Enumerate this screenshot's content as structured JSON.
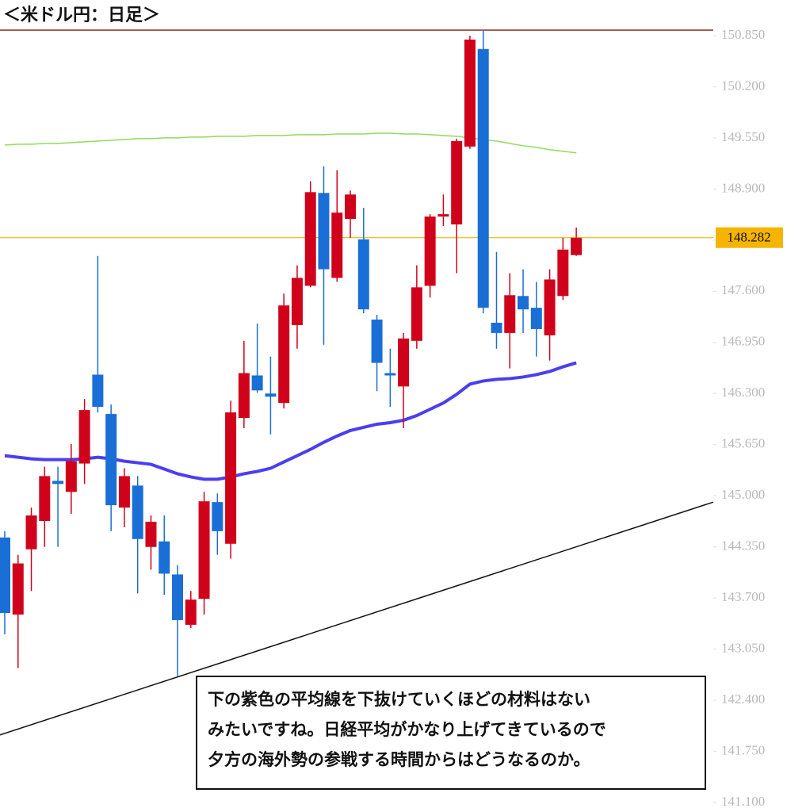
{
  "chart_data": {
    "type": "candlestick",
    "title": "＜米ドル円：日足＞",
    "ylim": [
      140.98,
      150.92
    ],
    "yticks": [
      {
        "value": 150.85,
        "label": "150.850"
      },
      {
        "value": 150.2,
        "label": "150.200"
      },
      {
        "value": 149.55,
        "label": "149.550"
      },
      {
        "value": 148.9,
        "label": "148.900"
      },
      {
        "value": 148.25,
        "label": "148.250"
      },
      {
        "value": 147.6,
        "label": "147.600"
      },
      {
        "value": 146.95,
        "label": "146.950"
      },
      {
        "value": 146.3,
        "label": "146.300"
      },
      {
        "value": 145.65,
        "label": "145.650"
      },
      {
        "value": 145,
        "label": "145.000"
      },
      {
        "value": 144.35,
        "label": "144.350"
      },
      {
        "value": 143.7,
        "label": "143.700"
      },
      {
        "value": 143.05,
        "label": "143.050"
      },
      {
        "value": 142.4,
        "label": "142.400"
      },
      {
        "value": 141.75,
        "label": "141.750"
      },
      {
        "value": 141.1,
        "label": "141.100"
      }
    ],
    "up_color": "#d0021b",
    "down_color": "#1a6fd6",
    "open": [
      144.47,
      143.49,
      144.32,
      144.68,
      145.19,
      145.05,
      145.41,
      146.54,
      146.04,
      144.85,
      145.13,
      144.35,
      144.42,
      144.0,
      143.36,
      143.69,
      144.92,
      144.39,
      145.99,
      146.53,
      146.3,
      146.18,
      147.17,
      147.67,
      148.85,
      147.77,
      148.52,
      148.26,
      147.24,
      146.56,
      146.39,
      146.97,
      147.67,
      148.55,
      148.45,
      149.44,
      150.68,
      147.2,
      147.07,
      147.54,
      147.39,
      147.04,
      147.54,
      148.06
    ],
    "high": [
      144.55,
      144.25,
      144.85,
      145.37,
      145.37,
      145.66,
      146.23,
      148.05,
      146.16,
      145.35,
      145.25,
      144.75,
      144.75,
      144.12,
      143.79,
      145.05,
      145.03,
      146.21,
      146.97,
      147.19,
      146.77,
      147.57,
      147.93,
      149.0,
      149.19,
      149.14,
      148.88,
      148.66,
      147.3,
      146.87,
      147.07,
      147.93,
      148.58,
      148.83,
      149.54,
      150.85,
      150.92,
      148.1,
      147.83,
      147.88,
      147.72,
      147.88,
      148.28,
      148.41
    ],
    "low": [
      143.24,
      142.81,
      143.79,
      144.35,
      144.35,
      144.77,
      145.15,
      146.06,
      144.55,
      144.6,
      143.76,
      144.06,
      143.74,
      142.71,
      143.32,
      143.49,
      144.25,
      144.2,
      145.86,
      146.31,
      145.78,
      146.11,
      146.87,
      147.65,
      146.92,
      147.72,
      148.28,
      147.32,
      146.33,
      146.13,
      145.86,
      146.87,
      147.52,
      148.43,
      147.83,
      149.41,
      147.32,
      146.87,
      146.62,
      147.07,
      146.77,
      146.72,
      147.49,
      148.05
    ],
    "close": [
      143.51,
      144.14,
      144.75,
      145.25,
      145.15,
      145.44,
      146.09,
      146.13,
      144.88,
      145.25,
      144.45,
      144.67,
      144.01,
      143.42,
      143.68,
      144.93,
      144.55,
      146.06,
      146.56,
      146.34,
      146.26,
      147.42,
      147.77,
      148.86,
      147.88,
      148.6,
      148.83,
      147.37,
      146.69,
      146.53,
      147.0,
      147.65,
      148.55,
      148.58,
      149.51,
      150.8,
      147.39,
      147.07,
      147.55,
      147.37,
      147.12,
      147.75,
      148.13,
      148.28
    ],
    "moving_averages": [
      {
        "color": "#8fdc5a",
        "values": [
          149.46,
          149.47,
          149.47,
          149.48,
          149.48,
          149.49,
          149.5,
          149.51,
          149.52,
          149.53,
          149.54,
          149.54,
          149.55,
          149.55,
          149.56,
          149.56,
          149.57,
          149.57,
          149.57,
          149.58,
          149.58,
          149.58,
          149.59,
          149.59,
          149.59,
          149.6,
          149.6,
          149.6,
          149.61,
          149.61,
          149.6,
          149.6,
          149.59,
          149.58,
          149.57,
          149.55,
          149.53,
          149.51,
          149.48,
          149.45,
          149.43,
          149.4,
          149.38,
          149.36
        ]
      },
      {
        "color": "#4b3ef0",
        "values": [
          145.51,
          145.49,
          145.47,
          145.46,
          145.46,
          145.46,
          145.47,
          145.49,
          145.47,
          145.44,
          145.42,
          145.4,
          145.34,
          145.28,
          145.24,
          145.21,
          145.21,
          145.24,
          145.28,
          145.31,
          145.35,
          145.43,
          145.51,
          145.59,
          145.68,
          145.76,
          145.83,
          145.87,
          145.91,
          145.93,
          145.96,
          146.02,
          146.1,
          146.18,
          146.29,
          146.42,
          146.46,
          146.48,
          146.49,
          146.51,
          146.54,
          146.58,
          146.64,
          146.69
        ]
      }
    ],
    "trendline": {
      "color": "#111111",
      "values": [
        141.96,
        144.92
      ]
    },
    "current_price": {
      "value": 148.282,
      "color": "#f5b400"
    },
    "annotation": {
      "lines": [
        "下の紫色の平均線を下抜けていくほどの材料はない",
        "みたいですね。日経平均がかなり上げてきているので",
        "夕方の海外勢の参戦する時間からはどうなるのか。"
      ]
    }
  }
}
